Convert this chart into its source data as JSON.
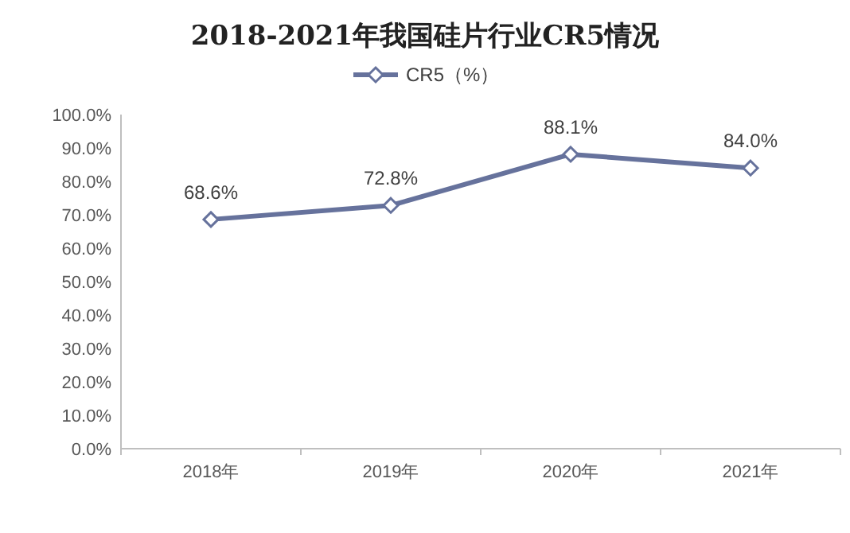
{
  "chart_data": {
    "type": "line",
    "title": "2018-2021年我国硅片行业CR5情况",
    "categories": [
      "2018年",
      "2019年",
      "2020年",
      "2021年"
    ],
    "series": [
      {
        "name": "CR5（%）",
        "color": "#66729c",
        "values": [
          68.6,
          72.8,
          88.1,
          84.0
        ],
        "value_labels": [
          "68.6%",
          "72.8%",
          "88.1%",
          "84.0%"
        ]
      }
    ],
    "ylim": [
      0,
      100
    ],
    "yticks": [
      {
        "value": 0,
        "label": "0.0%"
      },
      {
        "value": 10,
        "label": "10.0%"
      },
      {
        "value": 20,
        "label": "20.0%"
      },
      {
        "value": 30,
        "label": "30.0%"
      },
      {
        "value": 40,
        "label": "40.0%"
      },
      {
        "value": 50,
        "label": "50.0%"
      },
      {
        "value": 60,
        "label": "60.0%"
      },
      {
        "value": 70,
        "label": "70.0%"
      },
      {
        "value": 80,
        "label": "80.0%"
      },
      {
        "value": 90,
        "label": "90.0%"
      },
      {
        "value": 100,
        "label": "100.0%"
      }
    ],
    "legend": "top",
    "marker": "diamond",
    "line_style": "solid"
  }
}
